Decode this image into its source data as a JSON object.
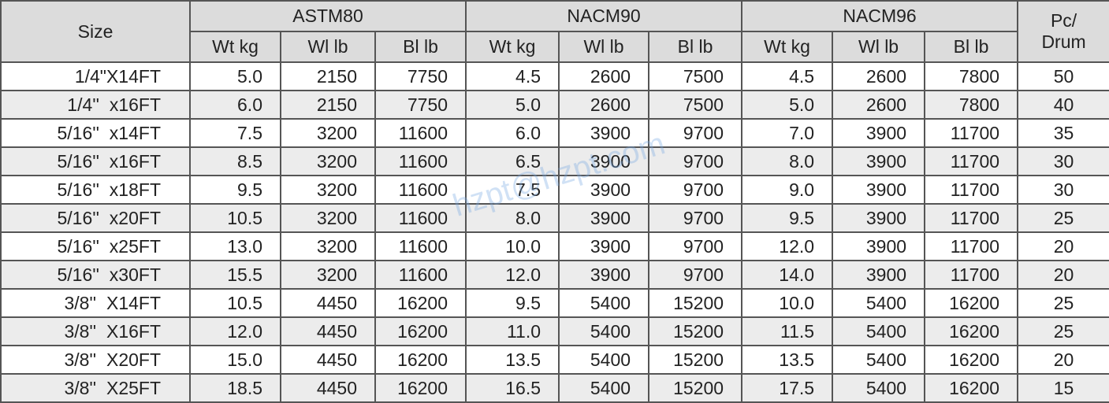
{
  "header": {
    "size": "Size",
    "groups": [
      "ASTM80",
      "NACM90",
      "NACM96"
    ],
    "pc": [
      "Pc/",
      "Drum"
    ],
    "sub": [
      "Wt kg",
      "Wl lb",
      "Bl lb"
    ]
  },
  "rows": [
    [
      "1/4\"X14FT",
      "5.0",
      "2150",
      "7750",
      "4.5",
      "2600",
      "7500",
      "4.5",
      "2600",
      "7800",
      "50"
    ],
    [
      "1/4''  x16FT",
      "6.0",
      "2150",
      "7750",
      "5.0",
      "2600",
      "7500",
      "5.0",
      "2600",
      "7800",
      "40"
    ],
    [
      "5/16''  x14FT",
      "7.5",
      "3200",
      "11600",
      "6.0",
      "3900",
      "9700",
      "7.0",
      "3900",
      "11700",
      "35"
    ],
    [
      "5/16''  x16FT",
      "8.5",
      "3200",
      "11600",
      "6.5",
      "3900",
      "9700",
      "8.0",
      "3900",
      "11700",
      "30"
    ],
    [
      "5/16''  x18FT",
      "9.5",
      "3200",
      "11600",
      "7.5",
      "3900",
      "9700",
      "9.0",
      "3900",
      "11700",
      "30"
    ],
    [
      "5/16''  x20FT",
      "10.5",
      "3200",
      "11600",
      "8.0",
      "3900",
      "9700",
      "9.5",
      "3900",
      "11700",
      "25"
    ],
    [
      "5/16''  x25FT",
      "13.0",
      "3200",
      "11600",
      "10.0",
      "3900",
      "9700",
      "12.0",
      "3900",
      "11700",
      "20"
    ],
    [
      "5/16''  x30FT",
      "15.5",
      "3200",
      "11600",
      "12.0",
      "3900",
      "9700",
      "14.0",
      "3900",
      "11700",
      "20"
    ],
    [
      "3/8''  X14FT",
      "10.5",
      "4450",
      "16200",
      "9.5",
      "5400",
      "15200",
      "10.0",
      "5400",
      "16200",
      "25"
    ],
    [
      "3/8''  X16FT",
      "12.0",
      "4450",
      "16200",
      "11.0",
      "5400",
      "15200",
      "11.5",
      "5400",
      "16200",
      "25"
    ],
    [
      "3/8''  X20FT",
      "15.0",
      "4450",
      "16200",
      "13.5",
      "5400",
      "15200",
      "13.5",
      "5400",
      "16200",
      "20"
    ],
    [
      "3/8''  X25FT",
      "18.5",
      "4450",
      "16200",
      "16.5",
      "5400",
      "15200",
      "17.5",
      "5400",
      "16200",
      "15"
    ]
  ],
  "watermark": "hzpt@hzpt.com"
}
